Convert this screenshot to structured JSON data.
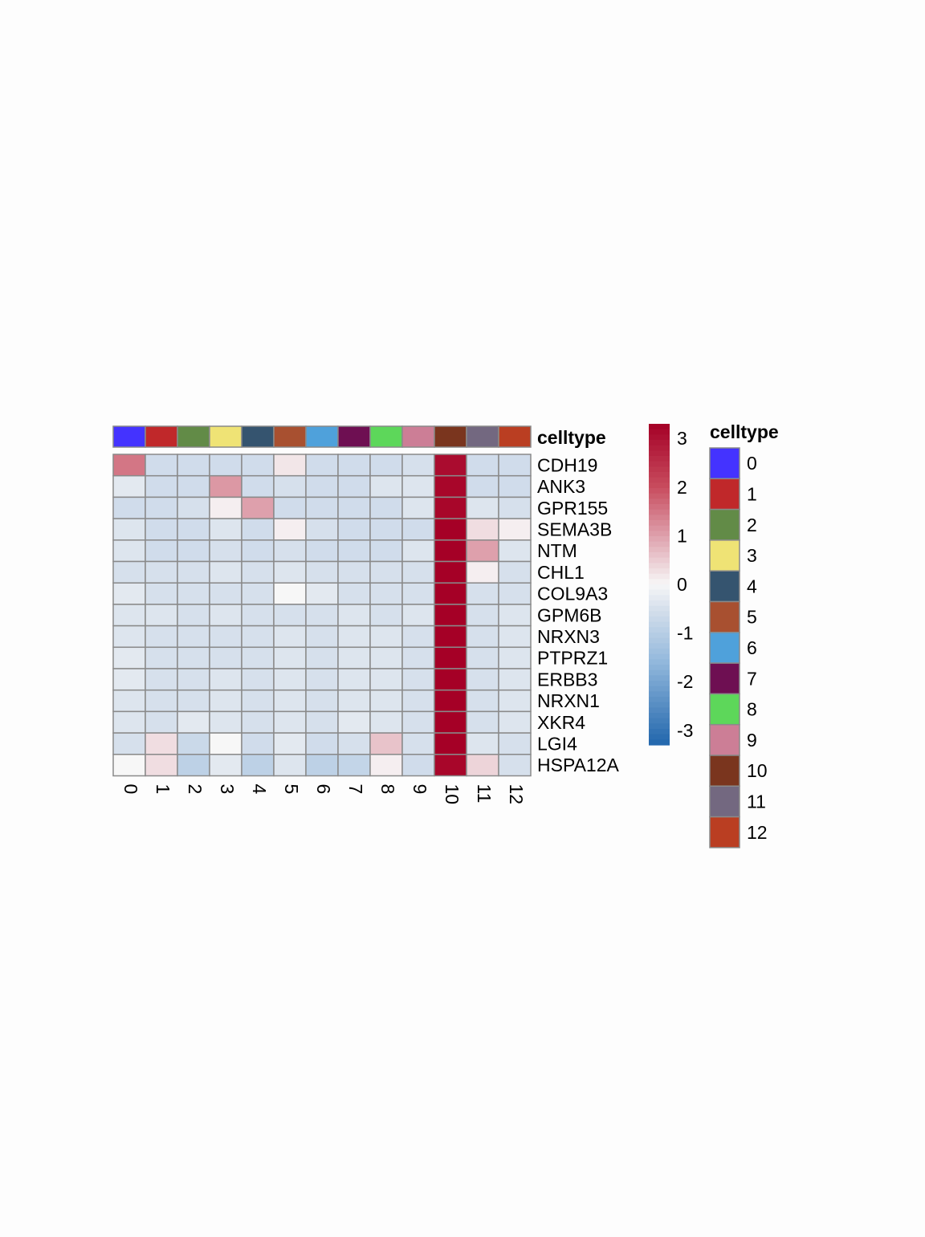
{
  "chart_data": {
    "type": "heatmap",
    "annotation_title": "celltype",
    "columns": [
      "0",
      "1",
      "2",
      "3",
      "4",
      "5",
      "6",
      "7",
      "8",
      "9",
      "10",
      "11",
      "12"
    ],
    "rows": [
      "CDH19",
      "ANK3",
      "GPR155",
      "SEMA3B",
      "NTM",
      "CHL1",
      "COL9A3",
      "GPM6B",
      "NRXN3",
      "PTPRZ1",
      "ERBB3",
      "NRXN1",
      "XKR4",
      "LGI4",
      "HSPA12A"
    ],
    "values": [
      [
        1.5,
        -0.6,
        -0.6,
        -0.6,
        -0.6,
        0.2,
        -0.6,
        -0.6,
        -0.6,
        -0.5,
        3.1,
        -0.6,
        -0.6
      ],
      [
        -0.3,
        -0.6,
        -0.6,
        1.1,
        -0.6,
        -0.5,
        -0.6,
        -0.6,
        -0.4,
        -0.4,
        3.2,
        -0.6,
        -0.6
      ],
      [
        -0.6,
        -0.6,
        -0.5,
        0.1,
        1.0,
        -0.6,
        -0.6,
        -0.6,
        -0.6,
        -0.4,
        3.2,
        -0.4,
        -0.5
      ],
      [
        -0.4,
        -0.6,
        -0.6,
        -0.4,
        -0.6,
        0.1,
        -0.5,
        -0.6,
        -0.6,
        -0.6,
        3.4,
        0.3,
        0.1
      ],
      [
        -0.4,
        -0.6,
        -0.6,
        -0.5,
        -0.6,
        -0.5,
        -0.6,
        -0.6,
        -0.6,
        -0.4,
        3.3,
        1.0,
        -0.4
      ],
      [
        -0.5,
        -0.5,
        -0.5,
        -0.4,
        -0.5,
        -0.4,
        -0.5,
        -0.5,
        -0.5,
        -0.5,
        3.4,
        0.1,
        -0.5
      ],
      [
        -0.3,
        -0.5,
        -0.5,
        -0.5,
        -0.5,
        0.0,
        -0.3,
        -0.5,
        -0.5,
        -0.5,
        3.4,
        -0.5,
        -0.5
      ],
      [
        -0.4,
        -0.4,
        -0.5,
        -0.4,
        -0.5,
        -0.5,
        -0.5,
        -0.4,
        -0.5,
        -0.4,
        3.4,
        -0.5,
        -0.4
      ],
      [
        -0.4,
        -0.5,
        -0.5,
        -0.5,
        -0.5,
        -0.4,
        -0.5,
        -0.4,
        -0.4,
        -0.5,
        3.4,
        -0.5,
        -0.4
      ],
      [
        -0.3,
        -0.5,
        -0.5,
        -0.5,
        -0.5,
        -0.4,
        -0.5,
        -0.4,
        -0.4,
        -0.5,
        3.4,
        -0.5,
        -0.4
      ],
      [
        -0.3,
        -0.5,
        -0.5,
        -0.4,
        -0.5,
        -0.4,
        -0.5,
        -0.4,
        -0.4,
        -0.5,
        3.4,
        -0.5,
        -0.4
      ],
      [
        -0.4,
        -0.5,
        -0.5,
        -0.4,
        -0.5,
        -0.4,
        -0.5,
        -0.4,
        -0.4,
        -0.5,
        3.4,
        -0.5,
        -0.4
      ],
      [
        -0.4,
        -0.5,
        -0.3,
        -0.4,
        -0.5,
        -0.4,
        -0.5,
        -0.3,
        -0.4,
        -0.5,
        3.4,
        -0.5,
        -0.4
      ],
      [
        -0.5,
        0.3,
        -0.7,
        0.0,
        -0.6,
        -0.3,
        -0.6,
        -0.5,
        0.6,
        -0.5,
        3.4,
        -0.4,
        -0.5
      ],
      [
        0.0,
        0.3,
        -0.9,
        -0.3,
        -0.9,
        -0.4,
        -0.9,
        -0.8,
        0.1,
        -0.6,
        3.2,
        0.4,
        -0.5
      ]
    ],
    "colorbar": {
      "ticks": [
        3,
        2,
        1,
        0,
        -1,
        -2,
        -3
      ],
      "range": [
        -3.3,
        3.3
      ]
    },
    "annotation_colors": [
      "#4433ff",
      "#c0282a",
      "#628b47",
      "#efe375",
      "#35546f",
      "#a85030",
      "#4fa1db",
      "#6e0f52",
      "#5dd75a",
      "#cc7e96",
      "#7a351e",
      "#736880",
      "#ba3e22"
    ]
  }
}
